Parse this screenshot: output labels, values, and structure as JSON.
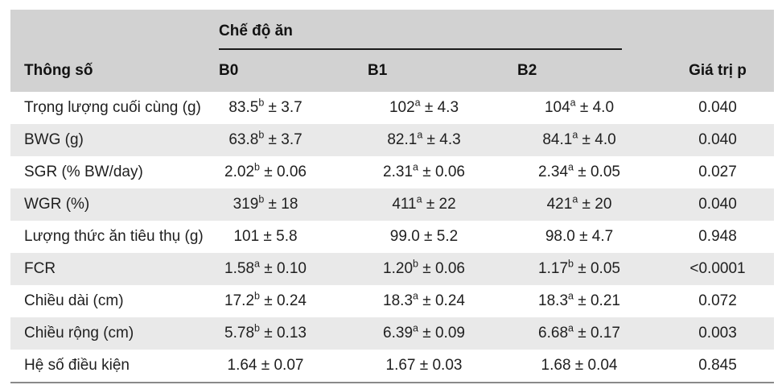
{
  "table": {
    "group_header": "Chế độ ăn",
    "param_header": "Thông số",
    "diet_headers": [
      "B0",
      "B1",
      "B2"
    ],
    "p_header": "Giá trị p",
    "plus_minus": "±",
    "rows": [
      {
        "label": "Trọng lượng cuối cùng (g)",
        "values": [
          {
            "v": "83.5",
            "sup": "b",
            "sd": "3.7"
          },
          {
            "v": "102",
            "sup": "a",
            "sd": "4.3"
          },
          {
            "v": "104",
            "sup": "a",
            "sd": "4.0"
          }
        ],
        "p": "0.040"
      },
      {
        "label": "BWG (g)",
        "values": [
          {
            "v": "63.8",
            "sup": "b",
            "sd": "3.7"
          },
          {
            "v": "82.1",
            "sup": "a",
            "sd": "4.3"
          },
          {
            "v": "84.1",
            "sup": "a",
            "sd": "4.0"
          }
        ],
        "p": "0.040"
      },
      {
        "label": "SGR (% BW/day)",
        "values": [
          {
            "v": "2.02",
            "sup": "b",
            "sd": "0.06"
          },
          {
            "v": "2.31",
            "sup": "a",
            "sd": "0.06"
          },
          {
            "v": "2.34",
            "sup": "a",
            "sd": "0.05"
          }
        ],
        "p": "0.027"
      },
      {
        "label": "WGR (%)",
        "values": [
          {
            "v": "319",
            "sup": "b",
            "sd": "18"
          },
          {
            "v": "411",
            "sup": "a",
            "sd": "22"
          },
          {
            "v": "421",
            "sup": "a",
            "sd": "20"
          }
        ],
        "p": "0.040"
      },
      {
        "label": "Lượng thức ăn tiêu thụ (g)",
        "values": [
          {
            "v": "101",
            "sup": "",
            "sd": "5.8"
          },
          {
            "v": "99.0",
            "sup": "",
            "sd": "5.2"
          },
          {
            "v": "98.0",
            "sup": "",
            "sd": "4.7"
          }
        ],
        "p": "0.948"
      },
      {
        "label": "FCR",
        "values": [
          {
            "v": "1.58",
            "sup": "a",
            "sd": "0.10"
          },
          {
            "v": "1.20",
            "sup": "b",
            "sd": "0.06"
          },
          {
            "v": "1.17",
            "sup": "b",
            "sd": "0.05"
          }
        ],
        "p": "<0.0001"
      },
      {
        "label": "Chiều dài (cm)",
        "values": [
          {
            "v": "17.2",
            "sup": "b",
            "sd": "0.24"
          },
          {
            "v": "18.3",
            "sup": "a",
            "sd": "0.24"
          },
          {
            "v": "18.3",
            "sup": "a",
            "sd": "0.21"
          }
        ],
        "p": "0.072"
      },
      {
        "label": "Chiều rộng (cm)",
        "values": [
          {
            "v": "5.78",
            "sup": "b",
            "sd": "0.13"
          },
          {
            "v": "6.39",
            "sup": "a",
            "sd": "0.09"
          },
          {
            "v": "6.68",
            "sup": "a",
            "sd": "0.17"
          }
        ],
        "p": "0.003"
      },
      {
        "label": "Hệ số điều kiện",
        "values": [
          {
            "v": "1.64",
            "sup": "",
            "sd": "0.07"
          },
          {
            "v": "1.67",
            "sup": "",
            "sd": "0.03"
          },
          {
            "v": "1.68",
            "sup": "",
            "sd": "0.04"
          }
        ],
        "p": "0.845"
      }
    ]
  },
  "colors": {
    "header_band": "#d2d2d2",
    "row_stripe": "#e9e9e9",
    "body_text": "#1f1f1f",
    "group_underline": "#1a1a1a",
    "bottom_rule": "#8a8a8a"
  }
}
